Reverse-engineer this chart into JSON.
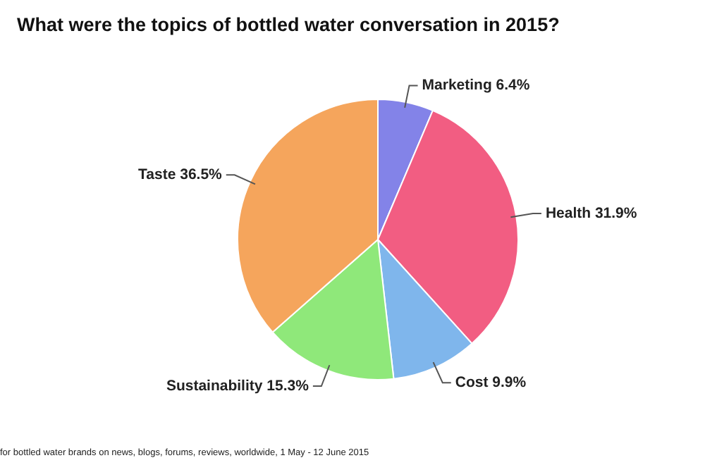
{
  "chart_data": {
    "type": "pie",
    "title": "What were the topics of bottled water conversation in 2015?",
    "categories": [
      "Marketing",
      "Health",
      "Cost",
      "Sustainability",
      "Taste"
    ],
    "values": [
      6.4,
      31.9,
      9.9,
      15.3,
      36.5
    ],
    "value_labels": [
      "6.4%",
      "31.9%",
      "9.9%",
      "15.3%",
      "36.5%"
    ],
    "colors": [
      "#8383e8",
      "#f25d82",
      "#7fb6ec",
      "#8fe87a",
      "#f5a55c"
    ],
    "legend": false,
    "annotations": [
      "for bottled water brands on news, blogs, forums, reviews, worldwide, 1 May - 12 June 2015"
    ]
  }
}
